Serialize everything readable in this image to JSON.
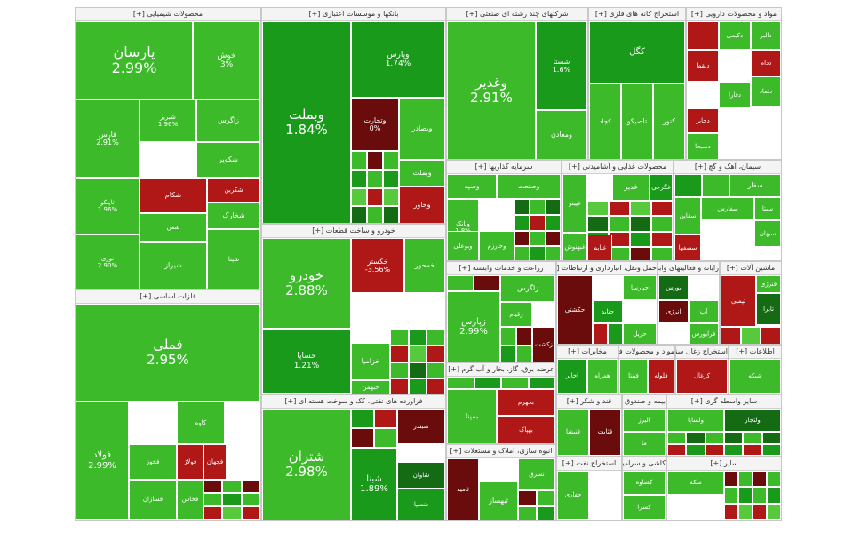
{
  "chart_data": {
    "type": "treemap",
    "colors": {
      "strong_green": "#1a9a1a",
      "green": "#3cba2a",
      "light_green": "#56c93c",
      "dark_green": "#146b14",
      "red": "#b01818",
      "dark_red": "#6a0c0c"
    },
    "sectors": [
      {
        "name": "محصولات شیمیایی",
        "tiles": [
          {
            "symbol": "پارسان",
            "value": "2.99%",
            "color": "green"
          },
          {
            "symbol": "خوش",
            "value": "3%",
            "color": "green"
          },
          {
            "symbol": "فارس",
            "value": "2.91%",
            "color": "green"
          },
          {
            "symbol": "شبریز",
            "value": "1.96%",
            "color": "green"
          },
          {
            "symbol": "تاپیکو",
            "value": "1.96%",
            "color": "green"
          },
          {
            "symbol": "نوری",
            "value": "2.90%",
            "color": "green"
          },
          {
            "symbol": "زاگرس",
            "value": "",
            "color": "green"
          },
          {
            "symbol": "شکویر",
            "value": "",
            "color": "green"
          },
          {
            "symbol": "شکربن",
            "value": "",
            "color": "red"
          },
          {
            "symbol": "شکام",
            "value": "",
            "color": "red"
          },
          {
            "symbol": "شفن",
            "value": "",
            "color": "green"
          },
          {
            "symbol": "شیراز",
            "value": "",
            "color": "green"
          },
          {
            "symbol": "شخارک",
            "value": "",
            "color": "green"
          },
          {
            "symbol": "شپنا",
            "value": "",
            "color": "green"
          }
        ]
      },
      {
        "name": "بانکها و موسسات اعتباری",
        "tiles": [
          {
            "symbol": "وبملت",
            "value": "1.84%",
            "color": "strong_green"
          },
          {
            "symbol": "وپارس",
            "value": "1.74%",
            "color": "strong_green"
          },
          {
            "symbol": "وتجارت",
            "value": "0%",
            "color": "dark_red"
          },
          {
            "symbol": "وبصادر",
            "value": "",
            "color": "green"
          },
          {
            "symbol": "وبملت",
            "value": "",
            "color": "green"
          },
          {
            "symbol": "وخاور",
            "value": "",
            "color": "red"
          }
        ]
      },
      {
        "name": "شرکتهای چند رشته ای صنعتی",
        "tiles": [
          {
            "symbol": "وغدیر",
            "value": "2.91%",
            "color": "green"
          },
          {
            "symbol": "شستا",
            "value": "1.6%",
            "color": "strong_green"
          },
          {
            "symbol": "ومعادن",
            "value": "",
            "color": "green"
          }
        ]
      },
      {
        "name": "استخراج کانه های فلزی",
        "tiles": [
          {
            "symbol": "کگل",
            "value": "",
            "color": "strong_green"
          },
          {
            "symbol": "فزر",
            "value": "-1.73%",
            "color": "dark_red"
          },
          {
            "symbol": "کچاد",
            "value": "",
            "color": "green"
          },
          {
            "symbol": "تاصیکو",
            "value": "",
            "color": "green"
          },
          {
            "symbol": "کنور",
            "value": "",
            "color": "green"
          }
        ]
      },
      {
        "name": "مواد و محصولات دارویی",
        "tiles": [
          {
            "symbol": "دالبر",
            "value": "",
            "color": "green"
          },
          {
            "symbol": "دکیمی",
            "value": "",
            "color": "green"
          },
          {
            "symbol": "ددام",
            "value": "",
            "color": "red"
          },
          {
            "symbol": "دلقما",
            "value": "",
            "color": "red"
          },
          {
            "symbol": "دفارا",
            "value": "",
            "color": "green"
          },
          {
            "symbol": "دتماد",
            "value": "",
            "color": "green"
          },
          {
            "symbol": "دجابر",
            "value": "",
            "color": "red"
          },
          {
            "symbol": "دسبحا",
            "value": "",
            "color": "green"
          }
        ]
      },
      {
        "name": "خودرو و ساخت قطعات",
        "tiles": [
          {
            "symbol": "خودرو",
            "value": "2.88%",
            "color": "green"
          },
          {
            "symbol": "خساپا",
            "value": "1.21%",
            "color": "strong_green"
          },
          {
            "symbol": "خگستر",
            "value": "-3.56%",
            "color": "red"
          },
          {
            "symbol": "خمحور",
            "value": "",
            "color": "green"
          },
          {
            "symbol": "خزامیا",
            "value": "",
            "color": "green"
          },
          {
            "symbol": "خبهمن",
            "value": "",
            "color": "green"
          }
        ]
      },
      {
        "name": "فلزات اساسی",
        "tiles": [
          {
            "symbol": "فملی",
            "value": "2.95%",
            "color": "green"
          },
          {
            "symbol": "فولاد",
            "value": "2.99%",
            "color": "green"
          },
          {
            "symbol": "فخوز",
            "value": "",
            "color": "green"
          },
          {
            "symbol": "کاوه",
            "value": "",
            "color": "green"
          },
          {
            "symbol": "فولاژ",
            "value": "",
            "color": "red"
          },
          {
            "symbol": "فجهان",
            "value": "",
            "color": "red"
          },
          {
            "symbol": "فسازان",
            "value": "",
            "color": "green"
          },
          {
            "symbol": "فخاس",
            "value": "",
            "color": "green"
          }
        ]
      },
      {
        "name": "فراورده های نفتی، کک و سوخت هسته ای",
        "tiles": [
          {
            "symbol": "شتران",
            "value": "2.98%",
            "color": "green"
          },
          {
            "symbol": "شبنا",
            "value": "1.89%",
            "color": "strong_green"
          },
          {
            "symbol": "شبندر",
            "value": "",
            "color": "dark_red"
          },
          {
            "symbol": "شاوان",
            "value": "",
            "color": "dark_green"
          },
          {
            "symbol": "شسپا",
            "value": "",
            "color": "strong_green"
          }
        ]
      },
      {
        "name": "سرمایه گذاریها",
        "tiles": [
          {
            "symbol": "وسپه",
            "value": "",
            "color": "green"
          },
          {
            "symbol": "وصنعت",
            "value": "",
            "color": "green"
          },
          {
            "symbol": "وبانک",
            "value": "1.8%",
            "color": "green"
          },
          {
            "symbol": "وبوعلی",
            "value": "",
            "color": "green"
          },
          {
            "symbol": "وخارزم",
            "value": "",
            "color": "green"
          }
        ]
      },
      {
        "name": "محصولات غذایی و آشامیدنی",
        "tiles": [
          {
            "symbol": "غگرجی",
            "value": "",
            "color": "strong_green"
          },
          {
            "symbol": "غدیر",
            "value": "",
            "color": "green"
          },
          {
            "symbol": "غنابم",
            "value": "",
            "color": "red"
          },
          {
            "symbol": "غپینو",
            "value": "",
            "color": "green"
          },
          {
            "symbol": "غبهنوش",
            "value": "",
            "color": "green"
          }
        ]
      },
      {
        "name": "سیمان، آهک و گچ",
        "tiles": [
          {
            "symbol": "سفار",
            "value": "",
            "color": "green"
          },
          {
            "symbol": "سفارس",
            "value": "",
            "color": "green"
          },
          {
            "symbol": "سیتا",
            "value": "",
            "color": "green"
          },
          {
            "symbol": "سقاین",
            "value": "",
            "color": "green"
          },
          {
            "symbol": "سبهان",
            "value": "",
            "color": "green"
          },
          {
            "symbol": "سصفها",
            "value": "",
            "color": "red"
          }
        ]
      },
      {
        "name": "زراعت و خدمات وابسته",
        "tiles": [
          {
            "symbol": "زپارس",
            "value": "2.99%",
            "color": "green"
          },
          {
            "symbol": "زاگرس",
            "value": "",
            "color": "green"
          },
          {
            "symbol": "زقیام",
            "value": "",
            "color": "green"
          },
          {
            "symbol": "زکشت",
            "value": "",
            "color": "dark_red"
          }
        ]
      },
      {
        "name": "حمل ونقل، انبارداری و ارتباطات",
        "tiles": [
          {
            "symbol": "حکشتی",
            "value": "",
            "color": "dark_red"
          },
          {
            "symbol": "حپارسا",
            "value": "",
            "color": "green"
          },
          {
            "symbol": "حتاید",
            "value": "",
            "color": "strong_green"
          },
          {
            "symbol": "حریل",
            "value": "",
            "color": "green"
          }
        ]
      },
      {
        "name": "رایانه و فعالیتهای وابسته",
        "tiles": [
          {
            "symbol": "بورس",
            "value": "",
            "color": "dark_green"
          },
          {
            "symbol": "آپ",
            "value": "",
            "color": "green"
          },
          {
            "symbol": "فرابورس",
            "value": "",
            "color": "green"
          },
          {
            "symbol": "انرژی",
            "value": "",
            "color": "dark_red"
          }
        ]
      },
      {
        "name": "ماشین آلات",
        "tiles": [
          {
            "symbol": "تایرا",
            "value": "",
            "color": "dark_green"
          },
          {
            "symbol": "تپمپی",
            "value": "",
            "color": "red"
          },
          {
            "symbol": "فنرژی",
            "value": "",
            "color": "green"
          }
        ]
      },
      {
        "name": "عرضه برق، گاز، بخار و آب گرم",
        "tiles": [
          {
            "symbol": "بمپنا",
            "value": "",
            "color": "green"
          },
          {
            "symbol": "بهپاک",
            "value": "",
            "color": "red"
          },
          {
            "symbol": "بجهرم",
            "value": "",
            "color": "red"
          }
        ]
      },
      {
        "name": "انبوه سازی، املاک و مستغلات",
        "tiles": [
          {
            "symbol": "ثامید",
            "value": "",
            "color": "dark_red"
          },
          {
            "symbol": "ثبهساز",
            "value": "",
            "color": "green"
          },
          {
            "symbol": "ثشرق",
            "value": "",
            "color": "green"
          }
        ]
      },
      {
        "name": "مخابرات",
        "tiles": [
          {
            "symbol": "اخابر",
            "value": "",
            "color": "strong_green"
          },
          {
            "symbol": "همراه",
            "value": "",
            "color": "green"
          }
        ]
      },
      {
        "name": "مواد و محصولات فلزی",
        "tiles": [
          {
            "symbol": "فپنتا",
            "value": "",
            "color": "green"
          },
          {
            "symbol": "فلوله",
            "value": "",
            "color": "red"
          }
        ]
      },
      {
        "name": "استخراج زغال سنگ",
        "tiles": [
          {
            "symbol": "کزغال",
            "value": "",
            "color": "red"
          },
          {
            "symbol": "کطبس",
            "value": "",
            "color": "green"
          }
        ]
      },
      {
        "name": "اطلاعات",
        "tiles": [
          {
            "symbol": "شبکه",
            "value": "",
            "color": "green"
          }
        ]
      },
      {
        "name": "قند و شکر",
        "tiles": [
          {
            "symbol": "قنیشا",
            "value": "",
            "color": "green"
          },
          {
            "symbol": "قثابت",
            "value": "",
            "color": "dark_red"
          }
        ]
      },
      {
        "name": "بیمه و صندوق",
        "tiles": [
          {
            "symbol": "البرز",
            "value": "",
            "color": "green"
          },
          {
            "symbol": "ما",
            "value": "",
            "color": "green"
          }
        ]
      },
      {
        "name": "سایر واسطه گری",
        "tiles": [
          {
            "symbol": "ولساپا",
            "value": "",
            "color": "green"
          },
          {
            "symbol": "ولتجار",
            "value": "",
            "color": "dark_green"
          }
        ]
      },
      {
        "name": "استخراج نفت",
        "tiles": [
          {
            "symbol": "حفاری",
            "value": "",
            "color": "green"
          }
        ]
      },
      {
        "name": "کاشی و سرامیک",
        "tiles": [
          {
            "symbol": "کساوه",
            "value": "",
            "color": "green"
          },
          {
            "symbol": "کسرا",
            "value": "",
            "color": "green"
          }
        ]
      },
      {
        "name": "سایر",
        "tiles": [
          {
            "symbol": "سکه",
            "value": "",
            "color": "green"
          }
        ]
      }
    ]
  }
}
